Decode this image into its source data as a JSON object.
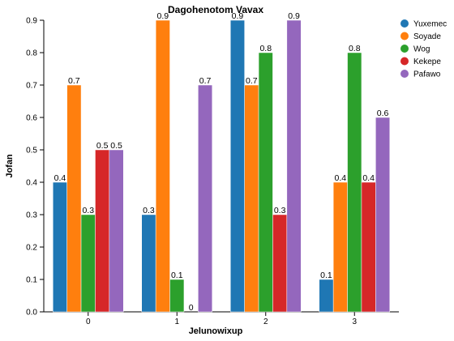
{
  "chart_data": {
    "type": "bar",
    "title": "Dagohenotom Vavax",
    "xlabel": "Jelunowixup",
    "ylabel": "Jofan",
    "categories": [
      "0",
      "1",
      "2",
      "3"
    ],
    "ylim": [
      0,
      0.9
    ],
    "y_ticks": [
      "0.0",
      "0.1",
      "0.2",
      "0.3",
      "0.4",
      "0.5",
      "0.6",
      "0.7",
      "0.8",
      "0.9"
    ],
    "grid": false,
    "legend_position": "top-right",
    "series": [
      {
        "name": "Yuxemec",
        "color": "#1f77b4",
        "values": [
          0.4,
          0.3,
          0.9,
          0.1
        ],
        "labels": [
          "0.4",
          "0.3",
          "0.9",
          "0.1"
        ]
      },
      {
        "name": "Soyade",
        "color": "#ff7f0e",
        "values": [
          0.7,
          0.9,
          0.7,
          0.4
        ],
        "labels": [
          "0.7",
          "0.9",
          "0.7",
          "0.4"
        ]
      },
      {
        "name": "Wog",
        "color": "#2ca02c",
        "values": [
          0.3,
          0.1,
          0.8,
          0.8
        ],
        "labels": [
          "0.3",
          "0.1",
          "0.8",
          "0.8"
        ]
      },
      {
        "name": "Kekepe",
        "color": "#d62728",
        "values": [
          0.5,
          0.0,
          0.3,
          0.4
        ],
        "labels": [
          "0.5",
          "0",
          "0.3",
          "0.4"
        ]
      },
      {
        "name": "Pafawo",
        "color": "#9467bd",
        "values": [
          0.5,
          0.7,
          0.9,
          0.6
        ],
        "labels": [
          "0.5",
          "0.7",
          "0.9",
          "0.6"
        ]
      }
    ]
  }
}
